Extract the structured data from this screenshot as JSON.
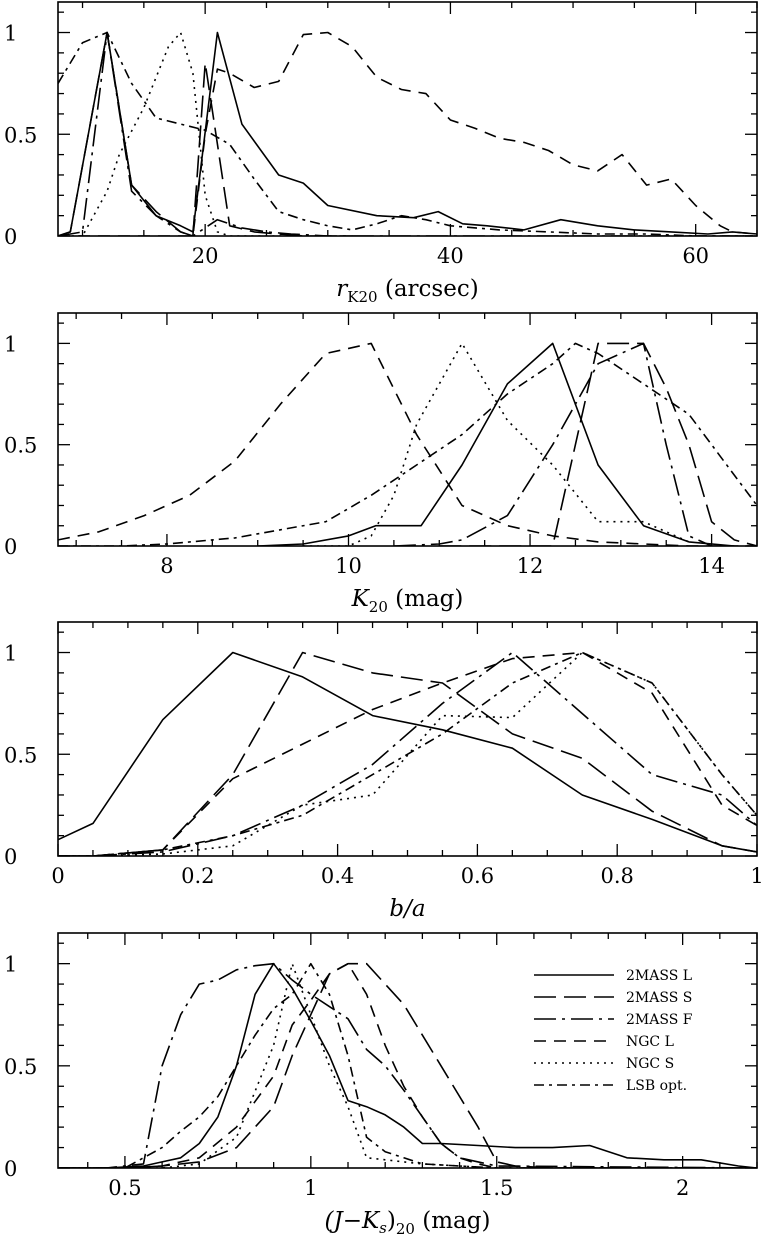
{
  "styles": {
    "2MASS L": "",
    "2MASS S": "22,8",
    "2MASS F": "22,6,3,6",
    "NGC L": "12,8",
    "NGC S": "2,5",
    "LSB opt.": "10,5,3,5"
  },
  "chart_data": [
    {
      "type": "line",
      "xlabel": "r",
      "xlabel_sub": "K20",
      "xlabel_unit": " (arcsec)",
      "xlim": [
        8,
        65
      ],
      "ylim": [
        0,
        1.15
      ],
      "xticks": [
        20,
        40,
        60
      ],
      "xtick_labels": [
        "20",
        "40",
        "60"
      ],
      "yticks": [
        0,
        0.5,
        1
      ],
      "ytick_labels": [
        "0",
        "0.5",
        "1"
      ],
      "series": [
        {
          "name": "2MASS L",
          "x": [
            8,
            9,
            12,
            14,
            16,
            18,
            19,
            21,
            23,
            26,
            28,
            30,
            34,
            37,
            39,
            41,
            43,
            46,
            49,
            52,
            55,
            58,
            61,
            63,
            65
          ],
          "y": [
            0,
            0.02,
            1,
            0.25,
            0.1,
            0.05,
            0.02,
            1,
            0.55,
            0.3,
            0.26,
            0.15,
            0.1,
            0.09,
            0.12,
            0.06,
            0.05,
            0.03,
            0.08,
            0.05,
            0.03,
            0.02,
            0.01,
            0.02,
            0.01
          ]
        },
        {
          "name": "2MASS S",
          "x": [
            8,
            9,
            12,
            14,
            16,
            18,
            19,
            20,
            22,
            24,
            26,
            28,
            30,
            32
          ],
          "y": [
            0,
            0.02,
            1,
            0.25,
            0.12,
            0.02,
            0,
            0.85,
            0.05,
            0.02,
            0.01,
            0,
            0,
            0
          ]
        },
        {
          "name": "2MASS F",
          "x": [
            8,
            9,
            10,
            12,
            14,
            16,
            18,
            19,
            21,
            23,
            25,
            27,
            30,
            33,
            35,
            40,
            45,
            50,
            55,
            60,
            65
          ],
          "y": [
            0,
            0.01,
            0.02,
            1,
            0.22,
            0.1,
            0.02,
            0,
            0.08,
            0.04,
            0.02,
            0.01,
            0,
            0,
            0,
            0,
            0,
            0,
            0,
            0,
            0
          ]
        },
        {
          "name": "NGC L",
          "x": [
            8,
            9,
            10,
            12,
            14,
            16,
            18,
            19,
            20,
            21,
            22,
            24,
            26,
            28,
            30,
            32,
            34,
            36,
            38,
            40,
            42,
            44,
            46,
            48,
            50,
            52,
            54,
            56,
            58,
            60,
            62,
            63,
            65
          ],
          "y": [
            0,
            0,
            0,
            0,
            0,
            0,
            0,
            0,
            0.5,
            0.82,
            0.8,
            0.73,
            0.76,
            0.99,
            1,
            0.93,
            0.78,
            0.72,
            0.7,
            0.57,
            0.53,
            0.48,
            0.46,
            0.42,
            0.35,
            0.32,
            0.4,
            0.25,
            0.28,
            0.15,
            0.05,
            0.02,
            0.01
          ]
        },
        {
          "name": "NGC S",
          "x": [
            8,
            9,
            10,
            12,
            13,
            15,
            17,
            18,
            19,
            20,
            21,
            22,
            24,
            26,
            28
          ],
          "y": [
            0,
            0,
            0,
            0.22,
            0.4,
            0.63,
            0.93,
            1,
            0.8,
            0.2,
            0.02,
            0,
            0,
            0,
            0
          ]
        },
        {
          "name": "LSB opt.",
          "x": [
            8,
            9,
            10,
            12,
            14,
            16,
            18,
            20,
            22,
            24,
            26,
            28,
            30,
            32,
            34,
            36,
            38,
            40,
            44,
            48,
            52,
            56,
            60,
            65
          ],
          "y": [
            0.75,
            0.85,
            0.95,
            1,
            0.75,
            0.58,
            0.55,
            0.52,
            0.45,
            0.28,
            0.12,
            0.08,
            0.05,
            0.03,
            0.06,
            0.1,
            0.08,
            0.05,
            0.03,
            0.02,
            0.01,
            0.01,
            0,
            0
          ]
        }
      ]
    },
    {
      "type": "line",
      "xlabel": "K",
      "xlabel_sub": "20",
      "xlabel_unit": " (mag)",
      "xlim": [
        6.8,
        14.5
      ],
      "ylim": [
        0,
        1.15
      ],
      "xticks": [
        8,
        10,
        12,
        14
      ],
      "xtick_labels": [
        "8",
        "10",
        "12",
        "14"
      ],
      "yticks": [
        0,
        0.5,
        1
      ],
      "ytick_labels": [
        "0",
        "0.5",
        "1"
      ],
      "series": [
        {
          "name": "2MASS L",
          "x": [
            9,
            9.5,
            10,
            10.3,
            10.8,
            11.25,
            11.75,
            12.25,
            12.75,
            13.25,
            13.75,
            14.25
          ],
          "y": [
            0,
            0.01,
            0.05,
            0.1,
            0.1,
            0.4,
            0.8,
            1,
            0.4,
            0.1,
            0.02,
            0
          ]
        },
        {
          "name": "2MASS S",
          "x": [
            11,
            11.5,
            12,
            12.25,
            12.5,
            12.75,
            13,
            13.25,
            13.5,
            13.75,
            14,
            14.25,
            14.5
          ],
          "y": [
            0,
            0,
            0,
            0,
            0.5,
            1,
            1,
            1,
            0.78,
            0.5,
            0.12,
            0.03,
            0
          ]
        },
        {
          "name": "2MASS F",
          "x": [
            10.5,
            11,
            11.25,
            11.75,
            12.25,
            12.75,
            13.25,
            13.5,
            13.75,
            14
          ],
          "y": [
            0,
            0.01,
            0.03,
            0.15,
            0.5,
            0.9,
            1,
            0.5,
            0.05,
            0
          ]
        },
        {
          "name": "NGC L",
          "x": [
            6.8,
            7.25,
            7.75,
            8.25,
            8.75,
            9.25,
            9.75,
            10.25,
            10.75,
            11.25,
            11.75,
            12.25,
            12.75,
            13.25,
            13.75,
            14.25,
            14.5
          ],
          "y": [
            0.03,
            0.07,
            0.15,
            0.25,
            0.42,
            0.7,
            0.95,
            1,
            0.55,
            0.2,
            0.1,
            0.05,
            0.02,
            0.01,
            0,
            0,
            0
          ]
        },
        {
          "name": "NGC S",
          "x": [
            9.5,
            10,
            10.25,
            10.5,
            10.75,
            11.25,
            11.75,
            12.25,
            12.75,
            13.25,
            13.75
          ],
          "y": [
            0,
            0,
            0.05,
            0.25,
            0.6,
            1,
            0.62,
            0.4,
            0.12,
            0.12,
            0.02
          ]
        },
        {
          "name": "LSB opt.",
          "x": [
            6.8,
            7.5,
            8,
            8.75,
            9.25,
            9.75,
            10.25,
            10.75,
            11.25,
            11.75,
            12.25,
            12.5,
            12.75,
            13.25,
            13.75,
            14.25,
            14.5
          ],
          "y": [
            0,
            0,
            0.01,
            0.04,
            0.08,
            0.12,
            0.25,
            0.4,
            0.55,
            0.75,
            0.9,
            1,
            0.95,
            0.8,
            0.65,
            0.35,
            0.2
          ]
        }
      ]
    },
    {
      "type": "line",
      "xlabel": "b/a",
      "xlabel_sub": "",
      "xlabel_unit": "",
      "xlim": [
        0,
        1
      ],
      "ylim": [
        0,
        1.15
      ],
      "xticks": [
        0,
        0.2,
        0.4,
        0.6,
        0.8,
        1
      ],
      "xtick_labels": [
        "0",
        "0.2",
        "0.4",
        "0.6",
        "0.8",
        "1"
      ],
      "yticks": [
        0,
        0.5,
        1
      ],
      "ytick_labels": [
        "0",
        "0.5",
        "1"
      ],
      "series": [
        {
          "name": "2MASS L",
          "x": [
            0,
            0.05,
            0.15,
            0.25,
            0.35,
            0.45,
            0.55,
            0.65,
            0.75,
            0.85,
            0.95,
            1
          ],
          "y": [
            0.08,
            0.16,
            0.67,
            1,
            0.88,
            0.69,
            0.62,
            0.53,
            0.3,
            0.18,
            0.05,
            0.02
          ]
        },
        {
          "name": "2MASS S",
          "x": [
            0,
            0.05,
            0.15,
            0.25,
            0.35,
            0.45,
            0.55,
            0.65,
            0.75,
            0.85,
            0.95,
            1
          ],
          "y": [
            0,
            0,
            0.03,
            0.4,
            1,
            0.9,
            0.85,
            0.6,
            0.48,
            0.22,
            0.05,
            0.02
          ]
        },
        {
          "name": "2MASS F",
          "x": [
            0,
            0.05,
            0.15,
            0.25,
            0.35,
            0.45,
            0.55,
            0.65,
            0.75,
            0.85,
            0.95,
            1
          ],
          "y": [
            0,
            0,
            0.02,
            0.1,
            0.25,
            0.45,
            0.75,
            1,
            0.7,
            0.4,
            0.3,
            0.15
          ]
        },
        {
          "name": "NGC L",
          "x": [
            0,
            0.05,
            0.15,
            0.25,
            0.35,
            0.45,
            0.55,
            0.65,
            0.75,
            0.85,
            0.95,
            1
          ],
          "y": [
            0,
            0,
            0.03,
            0.38,
            0.55,
            0.72,
            0.85,
            0.97,
            1,
            0.8,
            0.25,
            0.15
          ]
        },
        {
          "name": "NGC S",
          "x": [
            0,
            0.05,
            0.15,
            0.25,
            0.35,
            0.45,
            0.55,
            0.65,
            0.75,
            0.85,
            0.95,
            1
          ],
          "y": [
            0,
            0,
            0.01,
            0.05,
            0.25,
            0.3,
            0.69,
            0.68,
            1,
            0.85,
            0.4,
            0.2
          ]
        },
        {
          "name": "LSB opt.",
          "x": [
            0,
            0.05,
            0.15,
            0.25,
            0.35,
            0.45,
            0.55,
            0.65,
            0.75,
            0.85,
            0.95,
            1
          ],
          "y": [
            0,
            0,
            0.03,
            0.1,
            0.2,
            0.4,
            0.6,
            0.85,
            1,
            0.85,
            0.4,
            0.2
          ]
        }
      ]
    },
    {
      "type": "line",
      "xlabel": "(J−K",
      "xlabel_sub_s": "s",
      "xlabel_close": ")",
      "xlabel_sub": "20",
      "xlabel_unit": " (mag)",
      "xlim": [
        0.32,
        2.2
      ],
      "ylim": [
        0,
        1.15
      ],
      "xticks": [
        0.5,
        1,
        1.5,
        2
      ],
      "xtick_labels": [
        "0.5",
        "1",
        "1.5",
        "2"
      ],
      "yticks": [
        0,
        0.5,
        1
      ],
      "ytick_labels": [
        "0",
        "0.5",
        "1"
      ],
      "legend": [
        "2MASS L",
        "2MASS S",
        "2MASS F",
        "NGC L",
        "NGC S",
        "LSB opt."
      ],
      "legend_position": "top-right",
      "series": [
        {
          "name": "2MASS L",
          "x": [
            0.32,
            0.45,
            0.55,
            0.6,
            0.65,
            0.7,
            0.75,
            0.8,
            0.85,
            0.9,
            0.95,
            1,
            1.05,
            1.1,
            1.15,
            1.2,
            1.25,
            1.3,
            1.35,
            1.45,
            1.55,
            1.65,
            1.75,
            1.85,
            1.95,
            2.05,
            2.15,
            2.2
          ],
          "y": [
            0,
            0,
            0.01,
            0.03,
            0.05,
            0.12,
            0.25,
            0.5,
            0.85,
            1,
            0.88,
            0.72,
            0.55,
            0.33,
            0.3,
            0.26,
            0.2,
            0.12,
            0.12,
            0.11,
            0.1,
            0.1,
            0.11,
            0.05,
            0.04,
            0.04,
            0.01,
            0
          ]
        },
        {
          "name": "2MASS S",
          "x": [
            0.32,
            0.5,
            0.6,
            0.7,
            0.8,
            0.9,
            0.95,
            1,
            1.05,
            1.1,
            1.15,
            1.25,
            1.35,
            1.45,
            1.5,
            1.55,
            1.65,
            1.75,
            2.2
          ],
          "y": [
            0,
            0,
            0.01,
            0.03,
            0.1,
            0.3,
            0.55,
            0.75,
            0.95,
            1,
            1,
            0.8,
            0.5,
            0.2,
            0.03,
            0.01,
            0,
            0,
            0
          ]
        },
        {
          "name": "2MASS F",
          "x": [
            0.32,
            0.45,
            0.55,
            0.6,
            0.65,
            0.7,
            0.75,
            0.8,
            0.85,
            0.9,
            0.95,
            1,
            1.05,
            1.1,
            1.15,
            1.2,
            1.25,
            1.3,
            1.35,
            1.4,
            1.5,
            2.2
          ],
          "y": [
            0,
            0,
            0.02,
            0.5,
            0.75,
            0.9,
            0.92,
            0.97,
            0.99,
            1,
            0.92,
            0.85,
            0.79,
            0.73,
            0.58,
            0.5,
            0.38,
            0.25,
            0.12,
            0.05,
            0.01,
            0
          ]
        },
        {
          "name": "NGC L",
          "x": [
            0.32,
            0.5,
            0.6,
            0.7,
            0.8,
            0.9,
            0.95,
            1,
            1.05,
            1.1,
            1.15,
            1.2,
            1.25,
            1.3,
            1.35,
            1.4,
            1.45,
            1.5,
            2.2
          ],
          "y": [
            0,
            0,
            0.01,
            0.05,
            0.2,
            0.45,
            0.7,
            0.82,
            0.95,
            1,
            0.85,
            0.6,
            0.4,
            0.25,
            0.12,
            0.05,
            0.02,
            0,
            0
          ]
        },
        {
          "name": "NGC S",
          "x": [
            0.32,
            0.6,
            0.7,
            0.8,
            0.9,
            0.95,
            1,
            1.05,
            1.1,
            1.15,
            1.2,
            1.25,
            1.3,
            1.4,
            1.5,
            2.2
          ],
          "y": [
            0,
            0,
            0.02,
            0.15,
            0.6,
            1,
            0.75,
            0.5,
            0.3,
            0.05,
            0.04,
            0.03,
            0.02,
            0.01,
            0,
            0
          ]
        },
        {
          "name": "LSB opt.",
          "x": [
            0.32,
            0.5,
            0.6,
            0.65,
            0.7,
            0.75,
            0.8,
            0.85,
            0.9,
            0.95,
            1,
            1.05,
            1.1,
            1.15,
            1.2,
            1.25,
            1.3,
            1.4,
            1.5,
            2.2
          ],
          "y": [
            0,
            0,
            0.1,
            0.18,
            0.25,
            0.35,
            0.5,
            0.65,
            0.78,
            0.85,
            1,
            0.85,
            0.55,
            0.15,
            0.08,
            0.05,
            0.02,
            0.01,
            0,
            0
          ]
        }
      ]
    }
  ]
}
